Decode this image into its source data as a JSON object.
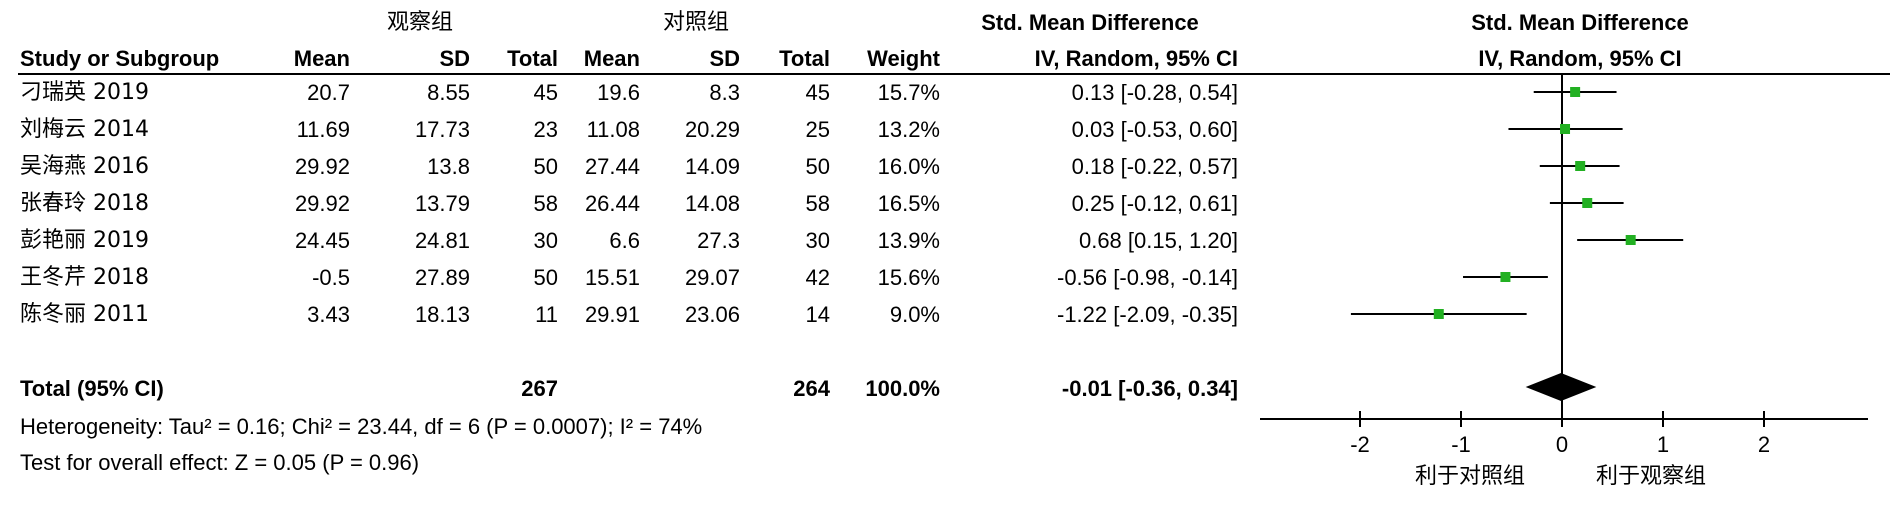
{
  "groups": {
    "experimental": "观察组",
    "control": "对照组"
  },
  "headers": {
    "study": "Study or Subgroup",
    "exp_mean": "Mean",
    "exp_sd": "SD",
    "exp_total": "Total",
    "ctl_mean": "Mean",
    "ctl_sd": "SD",
    "ctl_total": "Total",
    "weight": "Weight",
    "smd_title": "Std. Mean Difference",
    "smd_sub": "IV, Random, 95% CI",
    "plot_title": "Std. Mean Difference",
    "plot_sub": "IV, Random, 95% CI"
  },
  "studies": [
    {
      "name": "刁瑞英 2019",
      "exp_mean": "20.7",
      "exp_sd": "8.55",
      "exp_total": "45",
      "ctl_mean": "19.6",
      "ctl_sd": "8.3",
      "ctl_total": "45",
      "weight": "15.7%",
      "ci_text": "0.13 [-0.28, 0.54]"
    },
    {
      "name": "刘梅云 2014",
      "exp_mean": "11.69",
      "exp_sd": "17.73",
      "exp_total": "23",
      "ctl_mean": "11.08",
      "ctl_sd": "20.29",
      "ctl_total": "25",
      "weight": "13.2%",
      "ci_text": "0.03 [-0.53, 0.60]"
    },
    {
      "name": "吴海燕 2016",
      "exp_mean": "29.92",
      "exp_sd": "13.8",
      "exp_total": "50",
      "ctl_mean": "27.44",
      "ctl_sd": "14.09",
      "ctl_total": "50",
      "weight": "16.0%",
      "ci_text": "0.18 [-0.22, 0.57]"
    },
    {
      "name": "张春玲 2018",
      "exp_mean": "29.92",
      "exp_sd": "13.79",
      "exp_total": "58",
      "ctl_mean": "26.44",
      "ctl_sd": "14.08",
      "ctl_total": "58",
      "weight": "16.5%",
      "ci_text": "0.25 [-0.12, 0.61]"
    },
    {
      "name": "彭艳丽 2019",
      "exp_mean": "24.45",
      "exp_sd": "24.81",
      "exp_total": "30",
      "ctl_mean": "6.6",
      "ctl_sd": "27.3",
      "ctl_total": "30",
      "weight": "13.9%",
      "ci_text": "0.68 [0.15, 1.20]"
    },
    {
      "name": "王冬芹 2018",
      "exp_mean": "-0.5",
      "exp_sd": "27.89",
      "exp_total": "50",
      "ctl_mean": "15.51",
      "ctl_sd": "29.07",
      "ctl_total": "42",
      "weight": "15.6%",
      "ci_text": "-0.56 [-0.98, -0.14]"
    },
    {
      "name": "陈冬丽 2011",
      "exp_mean": "3.43",
      "exp_sd": "18.13",
      "exp_total": "11",
      "ctl_mean": "29.91",
      "ctl_sd": "23.06",
      "ctl_total": "14",
      "weight": "9.0%",
      "ci_text": "-1.22 [-2.09, -0.35]"
    }
  ],
  "total": {
    "label": "Total (95% CI)",
    "exp_total": "267",
    "ctl_total": "264",
    "weight": "100.0%",
    "ci_text": "-0.01 [-0.36, 0.34]"
  },
  "heterogeneity": "Heterogeneity: Tau² = 0.16; Chi² = 23.44, df = 6 (P = 0.0007); I² = 74%",
  "overall_effect": "Test for overall effect: Z = 0.05 (P = 0.96)",
  "favours": {
    "left": "利于对照组",
    "right": "利于观察组"
  },
  "colors": {
    "marker": "#22b022",
    "line": "#000000",
    "diamond": "#000000"
  },
  "chart_data": {
    "type": "forest",
    "title": "Std. Mean Difference",
    "subtitle": "IV, Random, 95% CI",
    "xlim": [
      -3,
      3
    ],
    "ticks": [
      -2,
      -1,
      0,
      1,
      2
    ],
    "tick_labels": [
      "-2",
      "-1",
      "0",
      "1",
      "2"
    ],
    "series": [
      {
        "study": "刁瑞英 2019",
        "estimate": 0.13,
        "lower": -0.28,
        "upper": 0.54,
        "weight": 15.7
      },
      {
        "study": "刘梅云 2014",
        "estimate": 0.03,
        "lower": -0.53,
        "upper": 0.6,
        "weight": 13.2
      },
      {
        "study": "吴海燕 2016",
        "estimate": 0.18,
        "lower": -0.22,
        "upper": 0.57,
        "weight": 16.0
      },
      {
        "study": "张春玲 2018",
        "estimate": 0.25,
        "lower": -0.12,
        "upper": 0.61,
        "weight": 16.5
      },
      {
        "study": "彭艳丽 2019",
        "estimate": 0.68,
        "lower": 0.15,
        "upper": 1.2,
        "weight": 13.9
      },
      {
        "study": "王冬芹 2018",
        "estimate": -0.56,
        "lower": -0.98,
        "upper": -0.14,
        "weight": 15.6
      },
      {
        "study": "陈冬丽 2011",
        "estimate": -1.22,
        "lower": -2.09,
        "upper": -0.35,
        "weight": 9.0
      }
    ],
    "pooled": {
      "estimate": -0.01,
      "lower": -0.36,
      "upper": 0.34
    }
  }
}
